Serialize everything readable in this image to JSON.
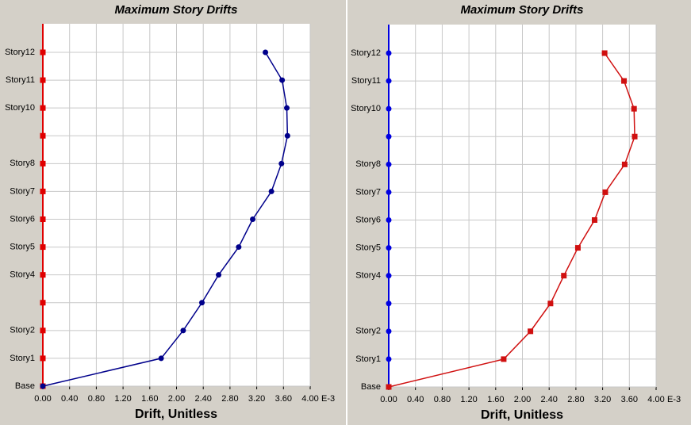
{
  "chart_data": [
    {
      "type": "line",
      "title": "Maximum Story Drifts",
      "x_label": "Drift, Unitless",
      "x_scale_label": "E-3",
      "categories": [
        "Base",
        "Story1",
        "Story2",
        null,
        "Story4",
        "Story5",
        "Story6",
        "Story7",
        "Story8",
        null,
        "Story10",
        "Story11",
        "Story12"
      ],
      "series": [
        {
          "name": "Drift",
          "color": "#00008b",
          "marker": "circle",
          "values": [
            0,
            1.77,
            2.1,
            2.38,
            2.63,
            2.93,
            3.14,
            3.42,
            3.57,
            3.66,
            3.65,
            3.58,
            3.33
          ]
        }
      ],
      "axis_color": "#e00000",
      "axis_marker": "square",
      "xlim": [
        0,
        4
      ],
      "xticks": [
        {
          "value": 0,
          "label": "0.00"
        },
        {
          "value": 0.4,
          "label": "0.40"
        },
        {
          "value": 0.8,
          "label": "0.80"
        },
        {
          "value": 1.2,
          "label": "1.20"
        },
        {
          "value": 1.6,
          "label": "1.60"
        },
        {
          "value": 2,
          "label": "2.00"
        },
        {
          "value": 2.4,
          "label": "2.40"
        },
        {
          "value": 2.8,
          "label": "2.80"
        },
        {
          "value": 3.2,
          "label": "3.20"
        },
        {
          "value": 3.6,
          "label": "3.60"
        },
        {
          "value": 4,
          "label": "4.00"
        }
      ],
      "grid": true
    },
    {
      "type": "line",
      "title": "Maximum Story Drifts",
      "x_label": "Drift, Unitless",
      "x_scale_label": "E-3",
      "categories": [
        "Base",
        "Story1",
        "Story2",
        null,
        "Story4",
        "Story5",
        "Story6",
        "Story7",
        "Story8",
        null,
        "Story10",
        "Story11",
        "Story12"
      ],
      "series": [
        {
          "name": "Drift",
          "color": "#d01010",
          "marker": "square",
          "values": [
            0,
            1.72,
            2.12,
            2.42,
            2.62,
            2.83,
            3.08,
            3.24,
            3.53,
            3.68,
            3.67,
            3.52,
            3.23
          ]
        }
      ],
      "axis_color": "#0000e0",
      "axis_marker": "circle",
      "xlim": [
        0,
        4
      ],
      "xticks": [
        {
          "value": 0,
          "label": "0.00"
        },
        {
          "value": 0.4,
          "label": "0.40"
        },
        {
          "value": 0.8,
          "label": "0.80"
        },
        {
          "value": 1.2,
          "label": "1.20"
        },
        {
          "value": 1.6,
          "label": "1.60"
        },
        {
          "value": 2,
          "label": "2.00"
        },
        {
          "value": 2.4,
          "label": "2.40"
        },
        {
          "value": 2.8,
          "label": "2.80"
        },
        {
          "value": 3.2,
          "label": "3.20"
        },
        {
          "value": 3.6,
          "label": "3.60"
        },
        {
          "value": 4,
          "label": "4.00"
        }
      ],
      "grid": true
    }
  ]
}
